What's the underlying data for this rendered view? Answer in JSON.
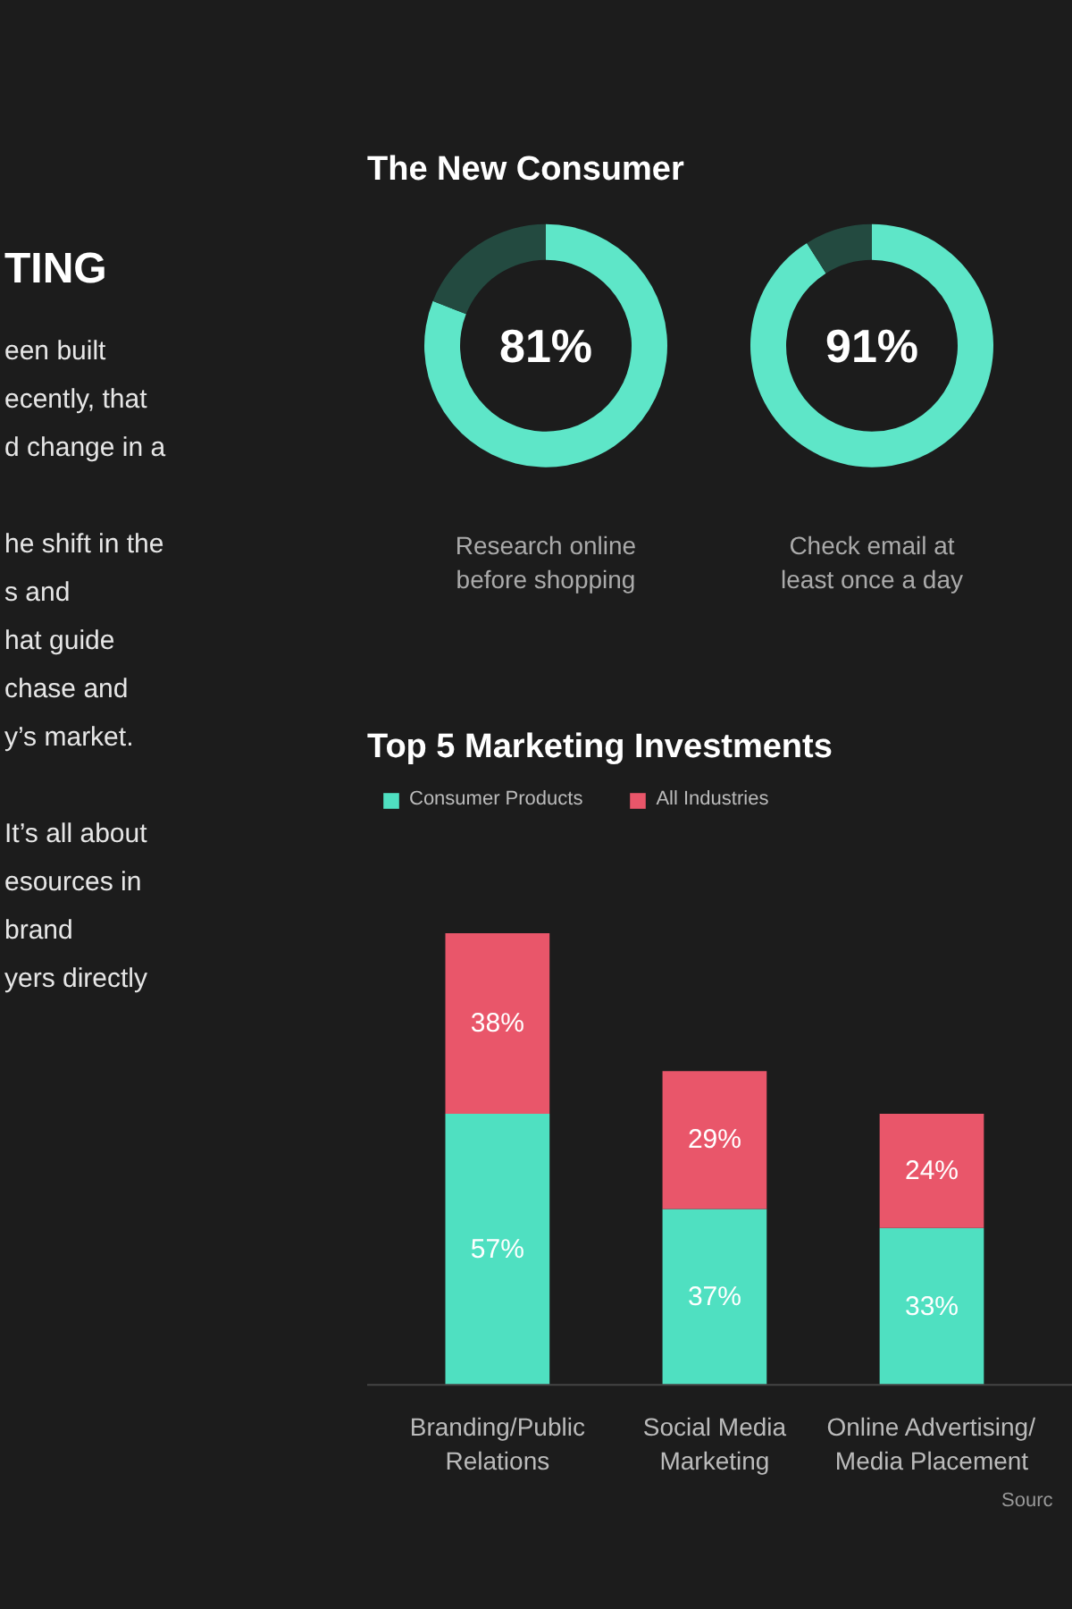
{
  "chart_data": [
    {
      "type": "other",
      "title": "TING",
      "annotations": [
        "een built",
        "ecently, that",
        "d change in a",
        "he shift in the",
        "s and",
        "hat guide",
        "chase and",
        "y’s market.",
        "It’s all about",
        "esources in",
        "brand",
        "yers directly"
      ]
    },
    {
      "type": "donut",
      "title": "The New Consumer",
      "categories": [
        null,
        null
      ],
      "values": [
        81,
        19
      ],
      "colors": [
        "#5ee6c8",
        "#234a40"
      ],
      "value_labels": [
        "81%",
        null
      ],
      "annotations": [
        "Research online before shopping"
      ]
    },
    {
      "type": "donut",
      "categories": [
        null,
        null
      ],
      "values": [
        91,
        9
      ],
      "colors": [
        "#5ee6c8",
        "#234a40"
      ],
      "value_labels": [
        "91%",
        null
      ],
      "annotations": [
        "Check email at least once a day"
      ]
    },
    {
      "type": "bar",
      "title": "Top 5 Marketing Investments",
      "stacked": true,
      "legend": "top left",
      "categories": [
        "Branding/Public Relations",
        "Social Media Marketing",
        "Online Advertising/ Media Placement"
      ],
      "series": [
        {
          "name": "Consumer Products",
          "color": "#4fe0c1",
          "values": [
            57,
            37,
            33
          ],
          "value_labels": [
            "57%",
            "37%",
            "33%"
          ]
        },
        {
          "name": "All Industries",
          "color": "#e9566a",
          "values": [
            38,
            29,
            24
          ],
          "value_labels": [
            "38%",
            "29%",
            "24%"
          ]
        }
      ],
      "annotations": [
        "Sourc"
      ]
    }
  ]
}
